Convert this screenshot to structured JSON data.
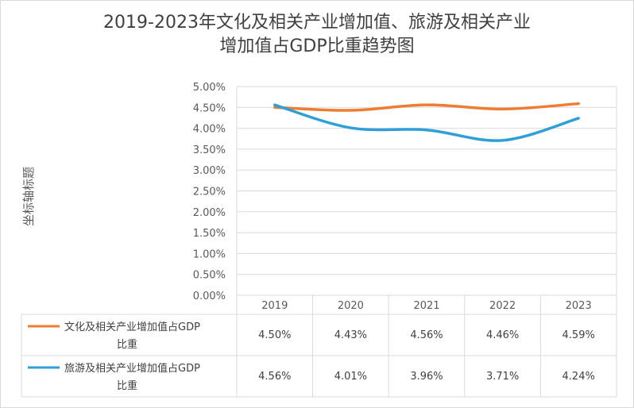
{
  "chart_data": {
    "type": "line",
    "title_line1": "2019-2023年文化及相关产业增加值、旅游及相关产业",
    "title_line2": "增加值占GDP比重趋势图",
    "ylabel": "坐标轴标题",
    "xlabel": "",
    "ylim": [
      0,
      0.05
    ],
    "yticks": [
      "0.00%",
      "0.50%",
      "1.00%",
      "1.50%",
      "2.00%",
      "2.50%",
      "3.00%",
      "3.50%",
      "4.00%",
      "4.50%",
      "5.00%"
    ],
    "categories": [
      "2019",
      "2020",
      "2021",
      "2022",
      "2023"
    ],
    "series": [
      {
        "name_line1": "文化及相关产业增加值占GDP",
        "name_line2": "比重",
        "color": "#ed7d31",
        "values": [
          0.045,
          0.0443,
          0.0456,
          0.0446,
          0.0459
        ],
        "labels": [
          "4.50%",
          "4.43%",
          "4.56%",
          "4.46%",
          "4.59%"
        ]
      },
      {
        "name_line1": "旅游及相关产业增加值占GDP",
        "name_line2": "比重",
        "color": "#2e9fd8",
        "values": [
          0.0456,
          0.0401,
          0.0396,
          0.0371,
          0.0424
        ],
        "labels": [
          "4.56%",
          "4.01%",
          "3.96%",
          "3.71%",
          "4.24%"
        ]
      }
    ],
    "grid": true,
    "legend": "data-table"
  }
}
